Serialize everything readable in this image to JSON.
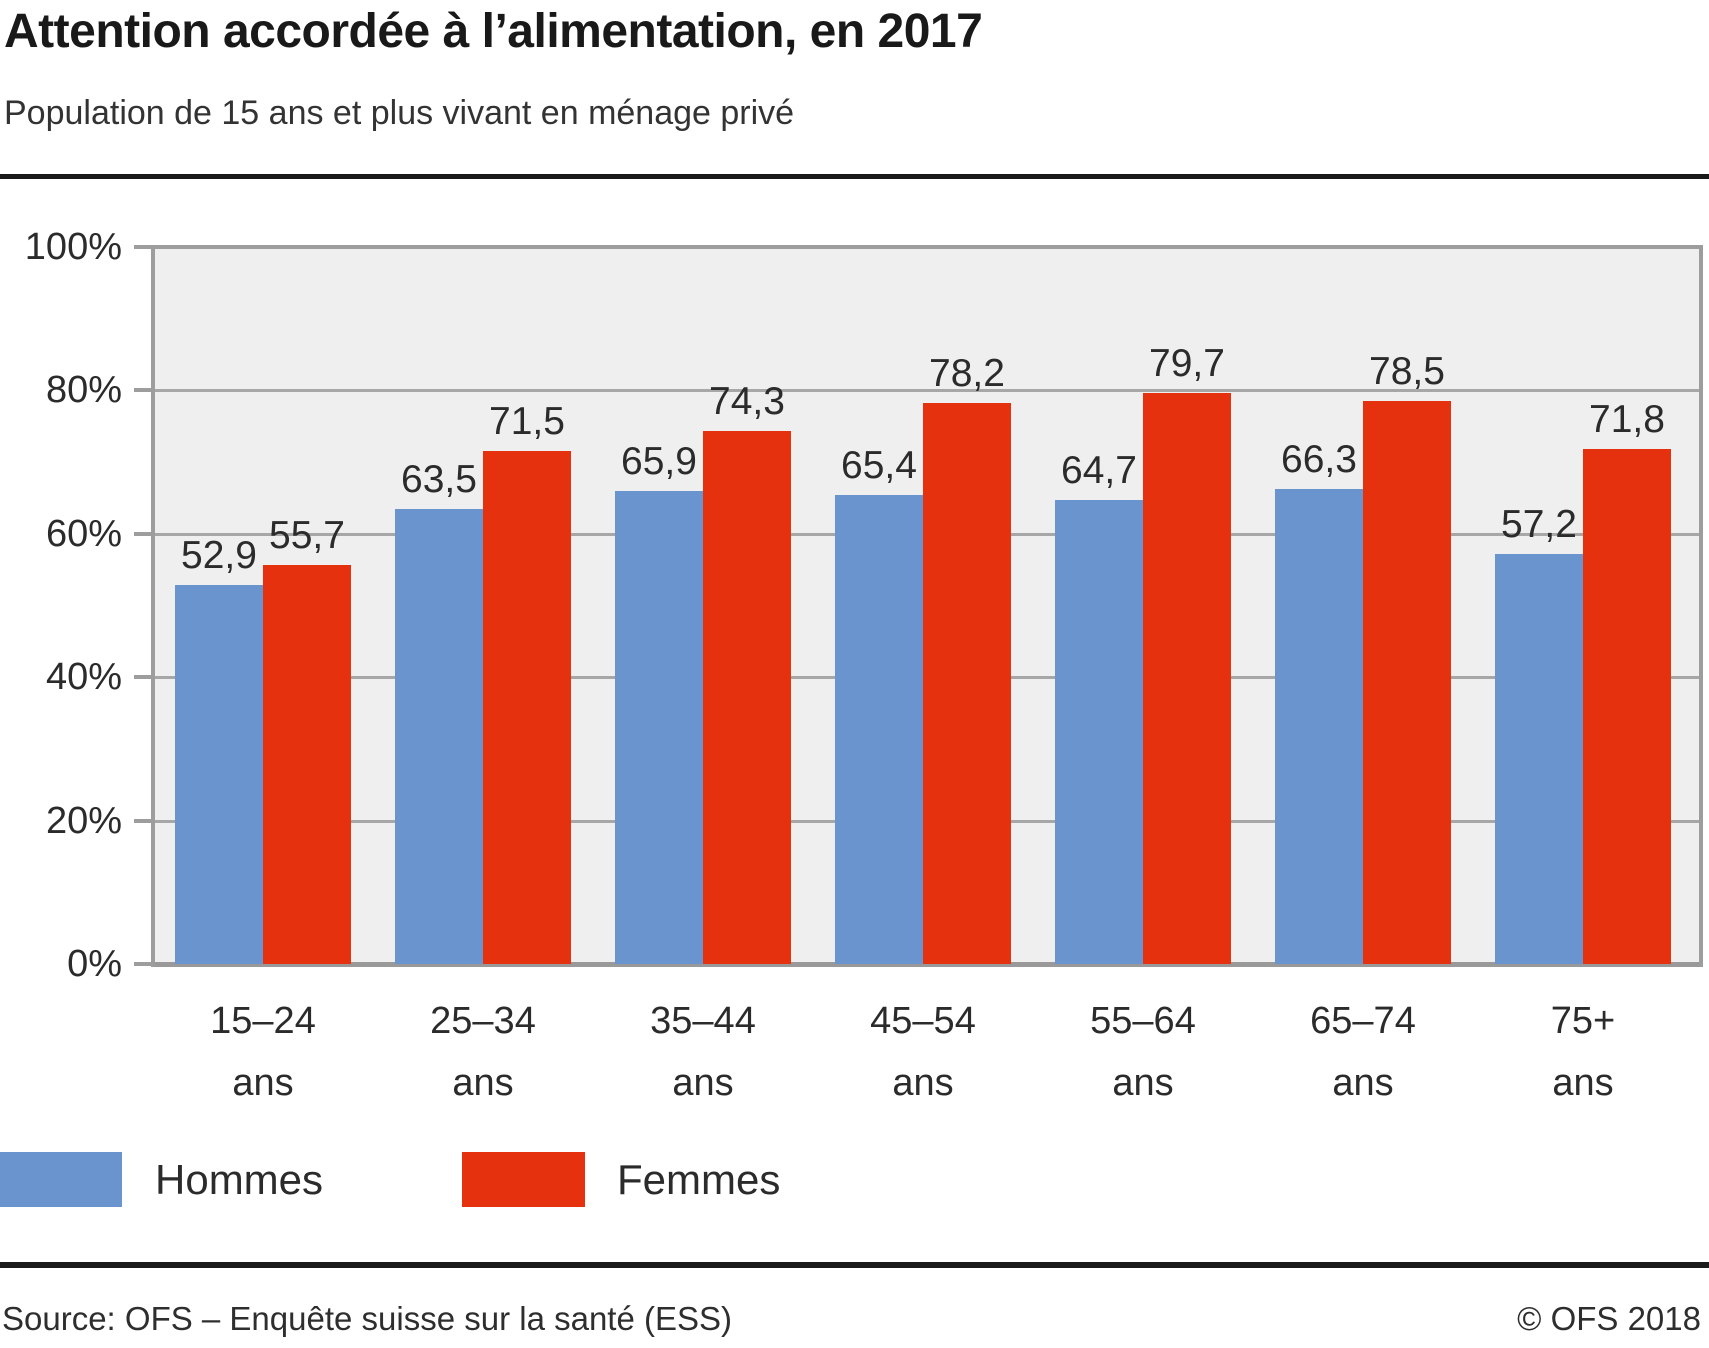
{
  "header": {
    "title": "Attention accordée à l’alimentation, en 2017",
    "subtitle": "Population de 15 ans et plus vivant en ménage privé"
  },
  "chart_data": {
    "type": "bar",
    "title": "Attention accordée à l’alimentation, en 2017",
    "subtitle": "Population de 15 ans et plus vivant en ménage privé",
    "categories": [
      "15–24 ans",
      "25–34 ans",
      "35–44 ans",
      "45–54 ans",
      "55–64 ans",
      "65–74 ans",
      "75+ ans"
    ],
    "category_line1": [
      "15–24",
      "25–34",
      "35–44",
      "45–54",
      "55–64",
      "65–74",
      "75+"
    ],
    "category_line2": "ans",
    "series": [
      {
        "name": "Hommes",
        "color": "#6a94cd",
        "values": [
          52.9,
          63.5,
          65.9,
          65.4,
          64.7,
          66.3,
          57.2
        ],
        "labels": [
          "52,9",
          "63,5",
          "65,9",
          "65,4",
          "64,7",
          "66,3",
          "57,2"
        ]
      },
      {
        "name": "Femmes",
        "color": "#e5310e",
        "values": [
          55.7,
          71.5,
          74.3,
          78.2,
          79.7,
          78.5,
          71.8
        ],
        "labels": [
          "55,7",
          "71,5",
          "74,3",
          "78,2",
          "79,7",
          "78,5",
          "71,8"
        ]
      }
    ],
    "xlabel": "",
    "ylabel": "",
    "ylim": [
      0,
      100
    ],
    "yticks": [
      0,
      20,
      40,
      60,
      80,
      100
    ],
    "ytick_labels": [
      "0%",
      "20%",
      "40%",
      "60%",
      "80%",
      "100%"
    ],
    "grid": true,
    "legend_position": "bottom-left",
    "plot_background": "#f0efef",
    "grid_color": "#a7a7a7"
  },
  "footer": {
    "source": "Source: OFS – Enquête suisse sur la santé (ESS)",
    "copyright": "© OFS 2018"
  }
}
